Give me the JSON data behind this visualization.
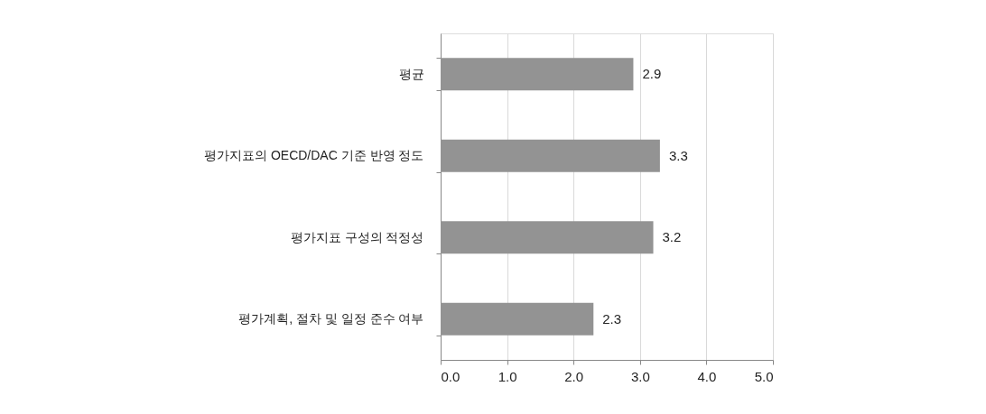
{
  "chart_data": {
    "type": "bar",
    "orientation": "horizontal",
    "categories": [
      "평균",
      "평가지표의 OECD/DAC 기준 반영 정도",
      "평가지표 구성의 적정성",
      "평가계획, 절차 및 일정 준수 여부"
    ],
    "values": [
      2.9,
      3.3,
      3.2,
      2.3
    ],
    "color": "#939393",
    "xlim": [
      0,
      5
    ],
    "xticks": [
      {
        "value": 0,
        "label": "0.0"
      },
      {
        "value": 1,
        "label": "1.0"
      },
      {
        "value": 2,
        "label": "2.0"
      },
      {
        "value": 3,
        "label": "3.0"
      },
      {
        "value": 4,
        "label": "4.0"
      },
      {
        "value": 5,
        "label": "5.0"
      }
    ],
    "grid": "x",
    "data_labels": true
  }
}
